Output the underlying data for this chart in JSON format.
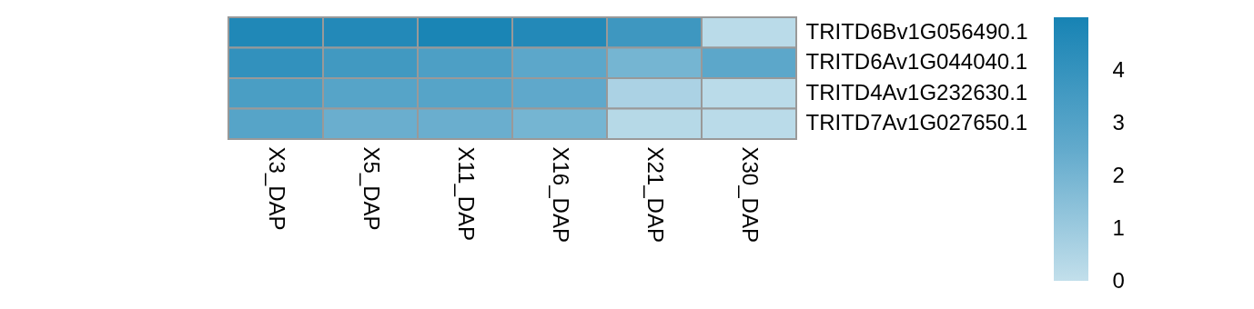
{
  "chart_data": {
    "type": "heatmap",
    "categories": [
      "X3_DAP",
      "X5_DAP",
      "X11_DAP",
      "X16_DAP",
      "X21_DAP",
      "X30_DAP"
    ],
    "y_categories": [
      "TRITD6Bv1G056490.1",
      "TRITD6Av1G044040.1",
      "TRITD4Av1G232630.1",
      "TRITD7Av1G027650.1"
    ],
    "cells": [
      [
        4.7,
        4.6,
        4.9,
        4.6,
        3.7,
        0.2
      ],
      [
        4.1,
        3.6,
        3.2,
        2.7,
        2.0,
        2.7
      ],
      [
        3.3,
        2.9,
        2.9,
        2.6,
        0.6,
        0.2
      ],
      [
        2.9,
        2.3,
        2.3,
        2.0,
        0.3,
        0.2
      ]
    ],
    "clim": [
      0,
      5
    ],
    "cticks": [
      0,
      1,
      2,
      3,
      4
    ],
    "colors": [
      "#c2dfeb",
      "#62aacc",
      "#1783b4"
    ]
  }
}
